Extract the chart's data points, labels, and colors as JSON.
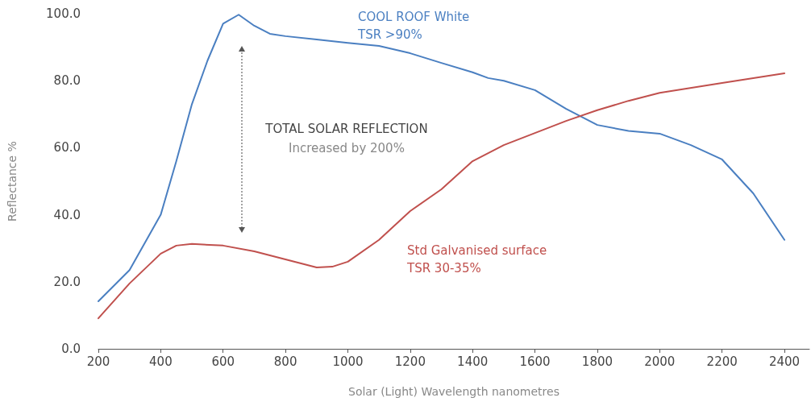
{
  "chart_data": {
    "type": "line",
    "xlabel": "Solar (Light) Wavelength nanometres",
    "ylabel": "Reflectance %",
    "annotations": [
      "TOTAL SOLAR REFLECTION",
      "Increased by 200%"
    ],
    "xlim": [
      200,
      2480
    ],
    "xticks": [
      200,
      400,
      600,
      800,
      1000,
      1200,
      1400,
      1600,
      1800,
      2000,
      2200,
      2400
    ],
    "ylim": [
      0,
      100
    ],
    "yticks": [
      {
        "value": 0,
        "label": "0.0"
      },
      {
        "value": 20,
        "label": "20.0"
      },
      {
        "value": 40,
        "label": "40.0"
      },
      {
        "value": 60,
        "label": "60.0"
      },
      {
        "value": 80,
        "label": "80.0"
      },
      {
        "value": 100,
        "label": "100.0"
      }
    ],
    "grid": false,
    "legend": false,
    "marker": "none",
    "line_style": "solid",
    "series": [
      {
        "name": "COOL ROOF White\nTSR >90%",
        "color": "#4a7fc1",
        "x": [
          200,
          300,
          400,
          450,
          500,
          550,
          600,
          650,
          700,
          750,
          800,
          900,
          1000,
          1100,
          1200,
          1300,
          1400,
          1450,
          1500,
          1600,
          1700,
          1800,
          1900,
          2000,
          2100,
          2200,
          2300,
          2400
        ],
        "values": [
          14.2,
          23.5,
          40,
          56,
          73,
          86,
          97,
          99.7,
          96.4,
          94,
          93.3,
          92.3,
          91.3,
          90.4,
          88.2,
          85.3,
          82.5,
          80.8,
          80,
          77.2,
          71.6,
          66.8,
          65,
          64.2,
          60.8,
          56.5,
          46.4,
          32.5
        ]
      },
      {
        "name": "Std Galvanised surface\nTSR 30-35%",
        "color": "#c0504d",
        "x": [
          200,
          300,
          400,
          450,
          500,
          600,
          700,
          800,
          900,
          950,
          1000,
          1100,
          1200,
          1300,
          1400,
          1500,
          1600,
          1700,
          1800,
          1900,
          2000,
          2200,
          2400
        ],
        "values": [
          9.1,
          19.5,
          28.4,
          30.8,
          31.3,
          30.8,
          29.1,
          26.7,
          24.3,
          24.5,
          26,
          32.5,
          41.1,
          47.6,
          56,
          60.8,
          64.4,
          68,
          71.2,
          74,
          76.4,
          79.3,
          82.2
        ]
      }
    ]
  }
}
